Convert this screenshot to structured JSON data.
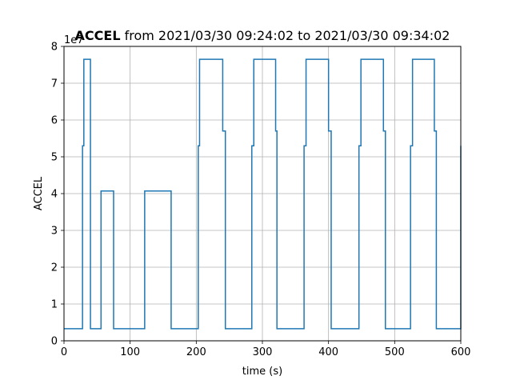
{
  "chart_data": {
    "type": "line",
    "title": {
      "bold": "ACCEL",
      "rest": " from 2021/03/30 09:24:02 to 2021/03/30 09:34:02"
    },
    "xlabel": "time (s)",
    "ylabel": "ACCEL",
    "y_offset_label": "1e7",
    "y_scale": 10000000,
    "xlim": [
      0,
      600
    ],
    "ylim": [
      0,
      8
    ],
    "x_ticks": [
      0,
      100,
      200,
      300,
      400,
      500,
      600
    ],
    "y_ticks": [
      0,
      1,
      2,
      3,
      4,
      5,
      6,
      7,
      8
    ],
    "grid": true,
    "legend": "none",
    "series_color": "#1f77b4",
    "series": [
      {
        "step": "post",
        "x": [
          0,
          28,
          30,
          40,
          56,
          75,
          122,
          162,
          203,
          205,
          240,
          242,
          244,
          284,
          287,
          318,
          320,
          322,
          363,
          366,
          400,
          402,
          404,
          446,
          449,
          483,
          486,
          524,
          527,
          560,
          563,
          600
        ],
        "y": [
          0.33,
          5.3,
          7.65,
          0.33,
          4.07,
          0.33,
          4.07,
          0.33,
          5.3,
          7.65,
          5.7,
          5.7,
          0.33,
          5.3,
          7.65,
          7.65,
          5.7,
          0.33,
          5.3,
          7.65,
          5.7,
          5.7,
          0.33,
          5.3,
          7.65,
          5.7,
          0.33,
          5.3,
          7.65,
          5.7,
          0.33,
          5.3
        ]
      }
    ]
  }
}
